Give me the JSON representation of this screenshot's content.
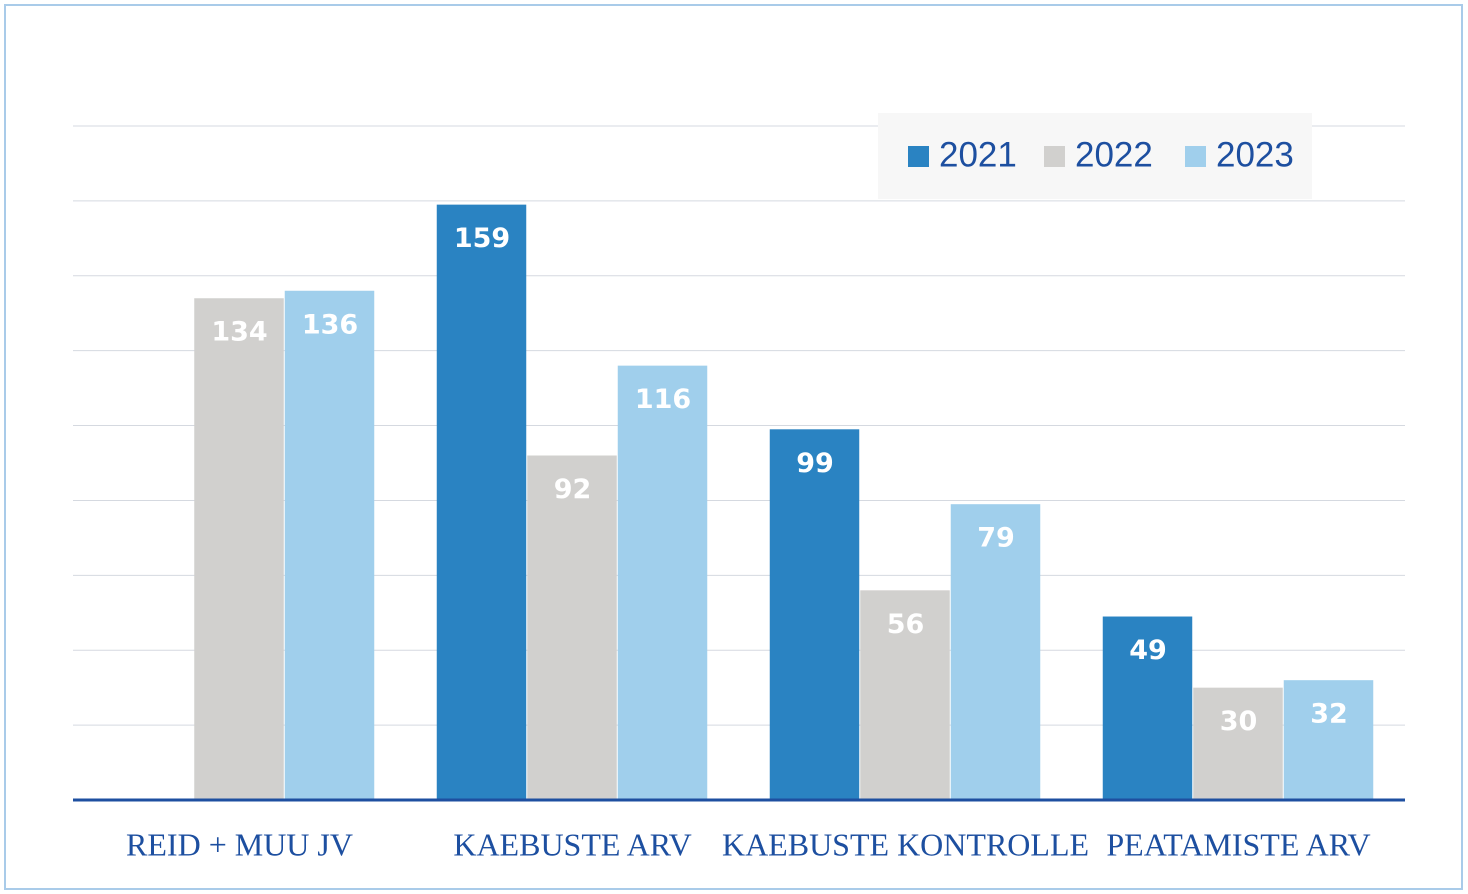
{
  "chart_data": {
    "type": "bar",
    "categories": [
      "REID + MUU JV",
      "KAEBUSTE ARV",
      "KAEBUSTE KONTROLLE",
      "PEATAMISTE ARV"
    ],
    "series": [
      {
        "name": "2021",
        "color": "#2a83c2",
        "values": [
          null,
          159,
          99,
          49
        ]
      },
      {
        "name": "2022",
        "color": "#d1d0ce",
        "values": [
          134,
          92,
          56,
          30
        ]
      },
      {
        "name": "2023",
        "color": "#a0cfec",
        "values": [
          136,
          116,
          79,
          32
        ]
      }
    ],
    "ylim": [
      0,
      180
    ],
    "yticks": [
      0,
      20,
      40,
      60,
      80,
      100,
      120,
      140,
      160,
      180
    ],
    "grid": true,
    "legend": "top-right"
  }
}
